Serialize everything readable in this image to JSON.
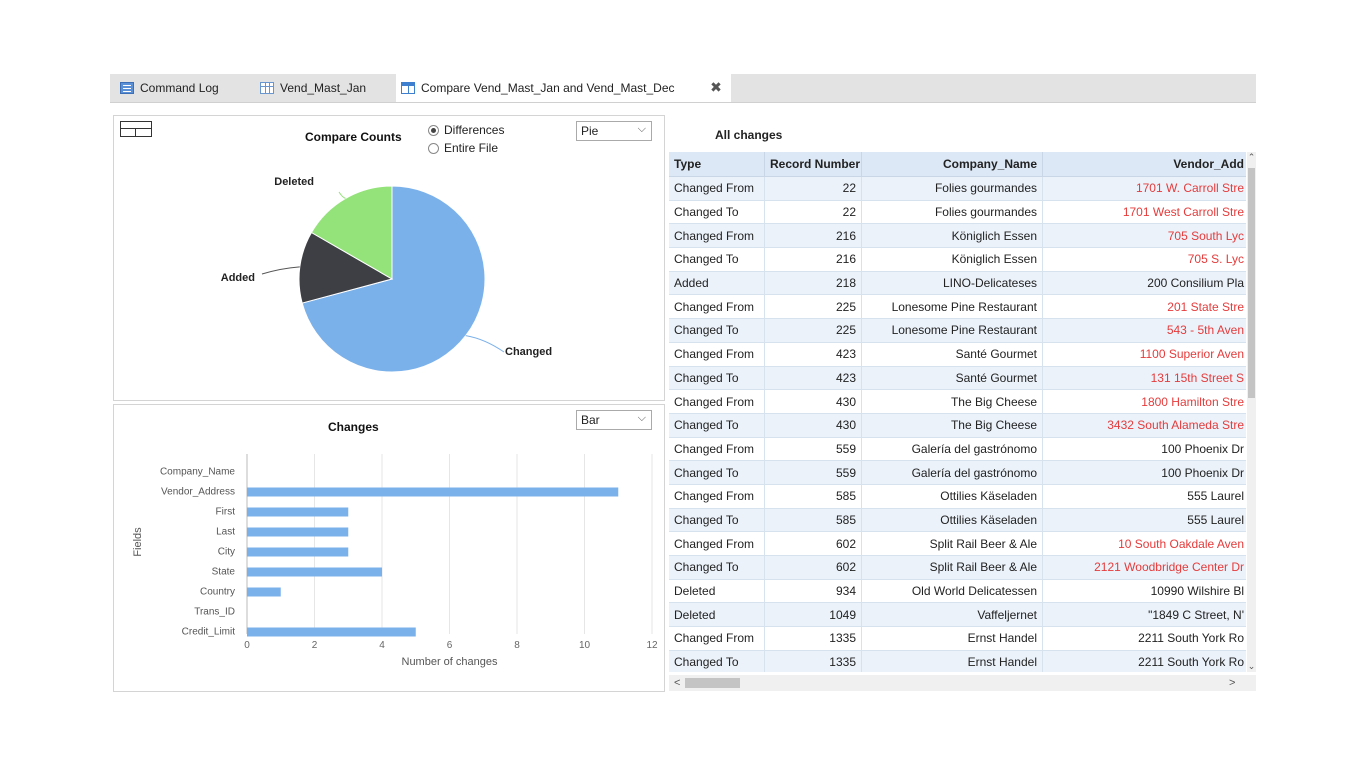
{
  "tabs": [
    {
      "label": "Command Log",
      "icon": "log-icon"
    },
    {
      "label": "Vend_Mast_Jan",
      "icon": "table-icon"
    },
    {
      "label": "Compare Vend_Mast_Jan and Vend_Mast_Dec",
      "icon": "compare-icon"
    }
  ],
  "close_label": "✖",
  "pie_panel": {
    "title": "Compare Counts",
    "radio_differences": "Differences",
    "radio_entire": "Entire File",
    "chart_type": "Pie"
  },
  "bar_panel": {
    "title": "Changes",
    "chart_type": "Bar"
  },
  "chart_data": [
    {
      "type": "pie",
      "title": "Compare Counts",
      "slices": [
        {
          "label": "Changed",
          "value": 17,
          "color": "#7bb1ea"
        },
        {
          "label": "Added",
          "value": 3,
          "color": "#3e3f45"
        },
        {
          "label": "Deleted",
          "value": 4,
          "color": "#94e27a"
        }
      ]
    },
    {
      "type": "bar",
      "orientation": "horizontal",
      "title": "Changes",
      "categories": [
        "Company_Name",
        "Vendor_Address",
        "First",
        "Last",
        "City",
        "State",
        "Country",
        "Trans_ID",
        "Credit_Limit"
      ],
      "values": [
        0,
        11,
        3,
        3,
        3,
        4,
        1,
        0,
        5
      ],
      "xlabel": "Number of changes",
      "ylabel": "Fields",
      "xlim": [
        0,
        12
      ],
      "xticks": [
        0,
        2,
        4,
        6,
        8,
        10,
        12
      ],
      "grid": true,
      "color": "#7bb1ea"
    }
  ],
  "grid": {
    "title": "All changes",
    "columns": [
      "Type",
      "Record Number",
      "Company_Name",
      "Vendor_Add"
    ],
    "rows": [
      {
        "type": "Changed From",
        "rec": "22",
        "company": "Folies gourmandes",
        "vendor": "1701 W. Carroll Stre",
        "changed": true
      },
      {
        "type": "Changed To",
        "rec": "22",
        "company": "Folies gourmandes",
        "vendor": "1701 West Carroll Stre",
        "changed": true
      },
      {
        "type": "Changed From",
        "rec": "216",
        "company": "Königlich Essen",
        "vendor": "705 South Lyc",
        "changed": true
      },
      {
        "type": "Changed To",
        "rec": "216",
        "company": "Königlich Essen",
        "vendor": "705 S. Lyc",
        "changed": true
      },
      {
        "type": "Added",
        "rec": "218",
        "company": "LINO-Delicateses",
        "vendor": "200 Consilium Pla",
        "changed": false
      },
      {
        "type": "Changed From",
        "rec": "225",
        "company": "Lonesome Pine Restaurant",
        "vendor": "201 State Stre",
        "changed": true
      },
      {
        "type": "Changed To",
        "rec": "225",
        "company": "Lonesome Pine Restaurant",
        "vendor": "543 - 5th Aven",
        "changed": true
      },
      {
        "type": "Changed From",
        "rec": "423",
        "company": "Santé Gourmet",
        "vendor": "1100 Superior Aven",
        "changed": true
      },
      {
        "type": "Changed To",
        "rec": "423",
        "company": "Santé Gourmet",
        "vendor": "131 15th Street S",
        "changed": true
      },
      {
        "type": "Changed From",
        "rec": "430",
        "company": "The Big Cheese",
        "vendor": "1800 Hamilton Stre",
        "changed": true
      },
      {
        "type": "Changed To",
        "rec": "430",
        "company": "The Big Cheese",
        "vendor": "3432 South Alameda Stre",
        "changed": true
      },
      {
        "type": "Changed From",
        "rec": "559",
        "company": "Galería del gastrónomo",
        "vendor": "100 Phoenix Dr",
        "changed": false
      },
      {
        "type": "Changed To",
        "rec": "559",
        "company": "Galería del gastrónomo",
        "vendor": "100 Phoenix Dr",
        "changed": false
      },
      {
        "type": "Changed From",
        "rec": "585",
        "company": "Ottilies Käseladen",
        "vendor": "555 Laurel",
        "changed": false
      },
      {
        "type": "Changed To",
        "rec": "585",
        "company": "Ottilies Käseladen",
        "vendor": "555 Laurel",
        "changed": false
      },
      {
        "type": "Changed From",
        "rec": "602",
        "company": "Split Rail Beer & Ale",
        "vendor": "10 South Oakdale Aven",
        "changed": true
      },
      {
        "type": "Changed To",
        "rec": "602",
        "company": "Split Rail Beer & Ale",
        "vendor": "2121 Woodbridge Center Dr",
        "changed": true
      },
      {
        "type": "Deleted",
        "rec": "934",
        "company": "Old World Delicatessen",
        "vendor": "10990 Wilshire Bl",
        "changed": false
      },
      {
        "type": "Deleted",
        "rec": "1049",
        "company": "Vaffeljernet",
        "vendor": "\"1849 C Street, N'",
        "changed": false
      },
      {
        "type": "Changed From",
        "rec": "1335",
        "company": "Ernst Handel",
        "vendor": "2211 South York Ro",
        "changed": false
      },
      {
        "type": "Changed To",
        "rec": "1335",
        "company": "Ernst Handel",
        "vendor": "2211 South York Ro",
        "changed": false
      }
    ]
  },
  "scroll": {
    "up": "⌃",
    "down": "⌄",
    "left": "<",
    "right": ">"
  }
}
